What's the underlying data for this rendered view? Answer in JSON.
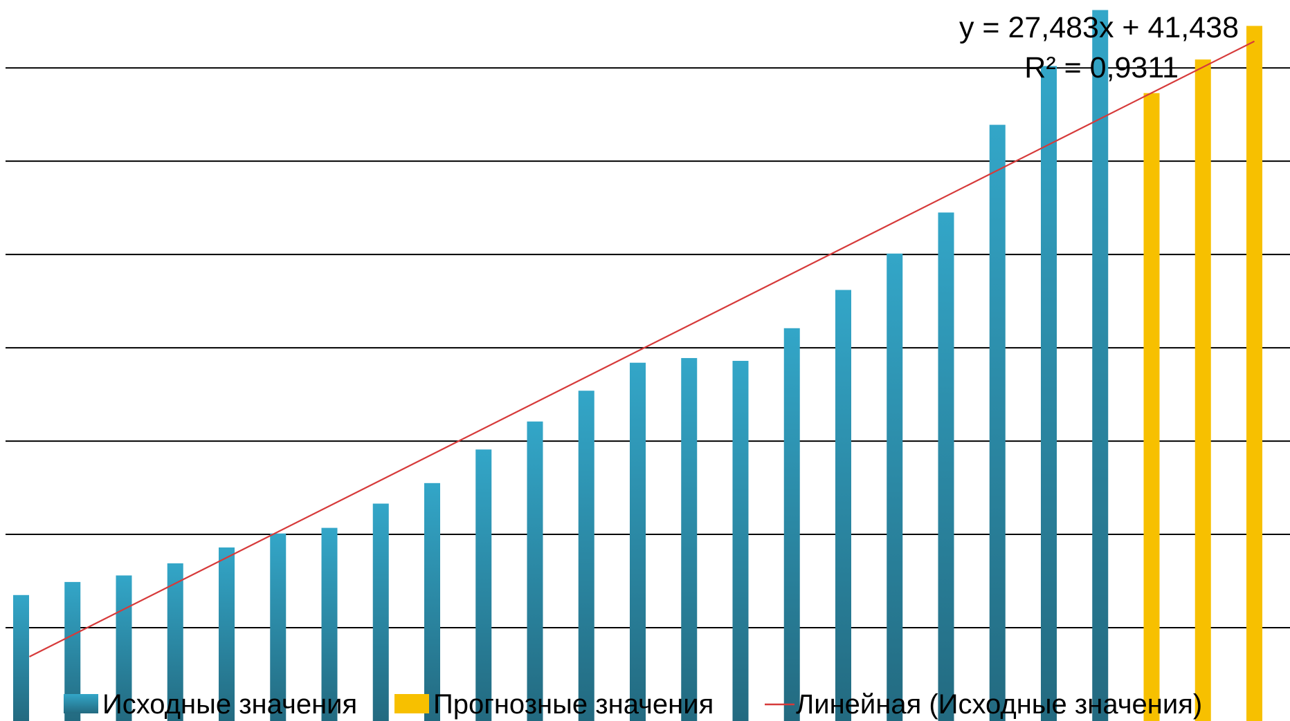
{
  "colors": {
    "original": "#2e9bbd",
    "original_dark": "#256f86",
    "forecast": "#f7c000",
    "trend": "#d63a3a",
    "grid": "#000000"
  },
  "chart_data": {
    "type": "bar",
    "title": "",
    "xlabel": "",
    "ylabel": "",
    "grid": true,
    "legend_position": "bottom",
    "x": [
      1,
      2,
      3,
      4,
      5,
      6,
      7,
      8,
      9,
      10,
      11,
      12,
      13,
      14,
      15,
      16,
      17,
      18,
      19,
      20,
      21,
      22,
      23,
      24,
      25
    ],
    "series": [
      {
        "name": "Исходные значения",
        "kind": "bar",
        "x": [
          1,
          2,
          3,
          4,
          5,
          6,
          7,
          8,
          9,
          10,
          11,
          12,
          13,
          14,
          15,
          16,
          17,
          18,
          19,
          20,
          21,
          22
        ],
        "values": [
          135,
          149,
          156,
          169,
          186,
          201,
          207,
          233,
          255,
          291,
          321,
          354,
          384,
          389,
          386,
          421,
          462,
          501,
          545,
          639,
          702,
          762
        ]
      },
      {
        "name": "Прогнозные значения",
        "kind": "bar",
        "x": [
          23,
          24,
          25
        ],
        "values": [
          673,
          709,
          745
        ]
      }
    ],
    "trendline": {
      "name": "Линейная (Исходные значения)",
      "slope": 27.483,
      "intercept": 41.438,
      "x_range": [
        1,
        25
      ],
      "equation_label": "y = 27,483x + 41,438",
      "r_squared_label": "R² = 0,9311"
    },
    "ylim": [
      0,
      800
    ],
    "gridlines": [
      100,
      200,
      300,
      400,
      500,
      600,
      700
    ]
  }
}
